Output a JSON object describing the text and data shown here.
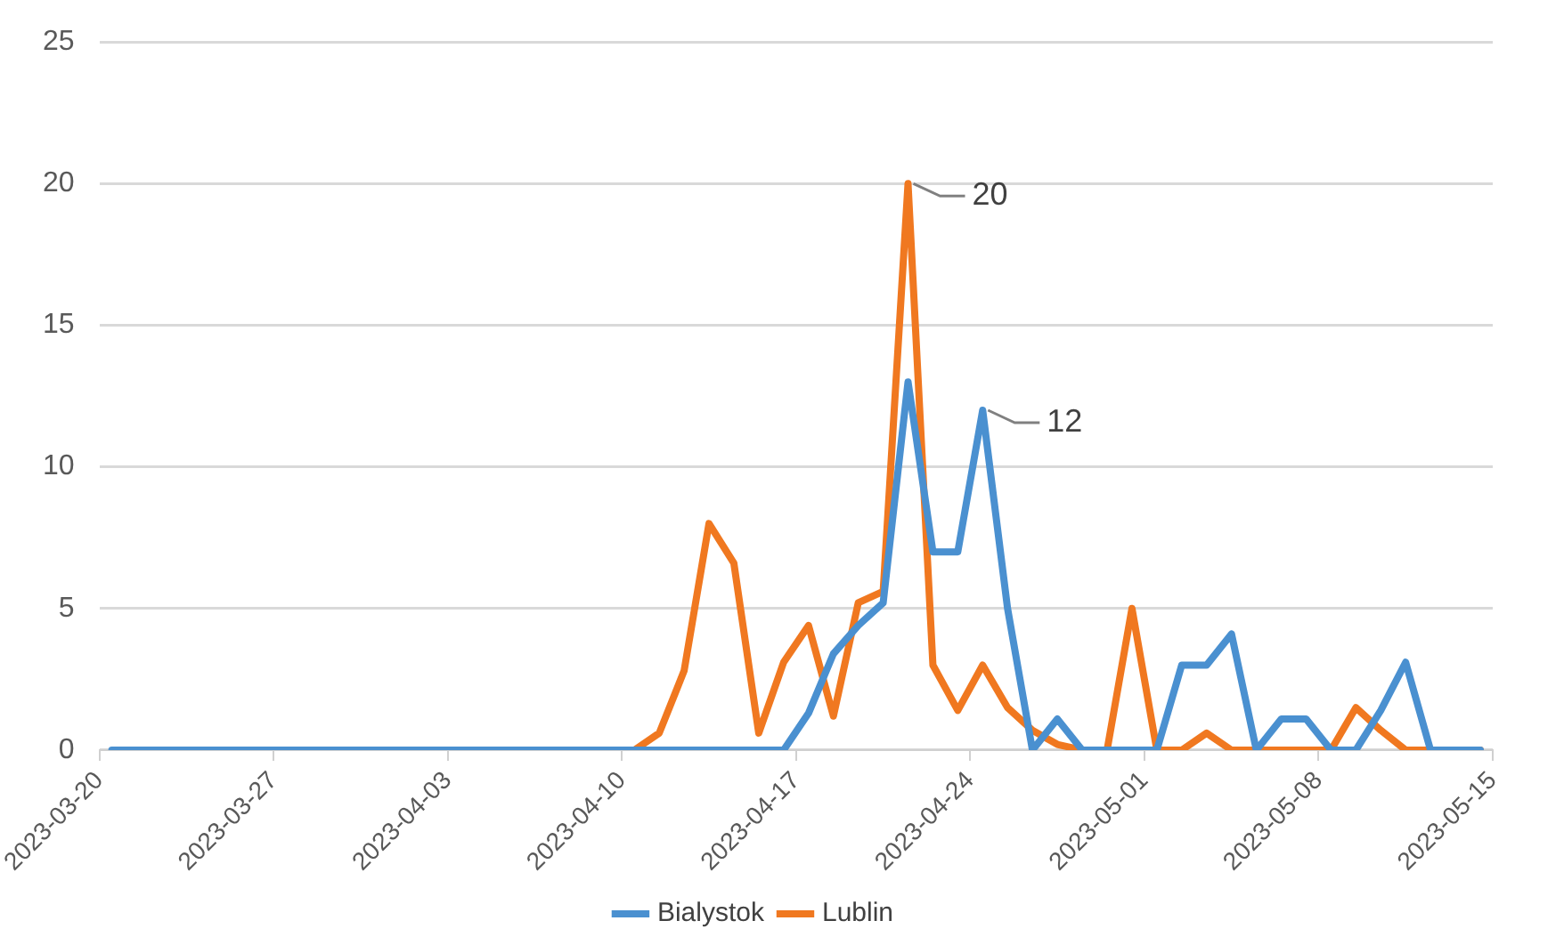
{
  "chart_data": {
    "type": "line",
    "x": [
      "2023-03-20T12:00",
      "2023-03-21T12:00",
      "2023-03-22T12:00",
      "2023-03-23T12:00",
      "2023-03-24T12:00",
      "2023-03-25T12:00",
      "2023-03-26T12:00",
      "2023-03-27T12:00",
      "2023-03-28T12:00",
      "2023-03-29T12:00",
      "2023-03-30T12:00",
      "2023-03-31T12:00",
      "2023-04-01T12:00",
      "2023-04-02T12:00",
      "2023-04-03T12:00",
      "2023-04-04T12:00",
      "2023-04-05T12:00",
      "2023-04-06T12:00",
      "2023-04-07T12:00",
      "2023-04-08T12:00",
      "2023-04-09T12:00",
      "2023-04-10T12:00",
      "2023-04-11T12:00",
      "2023-04-12T12:00",
      "2023-04-13T12:00",
      "2023-04-14T12:00",
      "2023-04-15T12:00",
      "2023-04-16T12:00",
      "2023-04-17T12:00",
      "2023-04-18T12:00",
      "2023-04-19T12:00",
      "2023-04-20T12:00",
      "2023-04-21T12:00",
      "2023-04-22T12:00",
      "2023-04-23T12:00",
      "2023-04-24T12:00",
      "2023-04-25T12:00",
      "2023-04-26T12:00",
      "2023-04-27T12:00",
      "2023-04-28T12:00",
      "2023-04-29T12:00",
      "2023-04-30T12:00",
      "2023-05-01T12:00",
      "2023-05-02T12:00",
      "2023-05-03T12:00",
      "2023-05-04T12:00",
      "2023-05-05T12:00",
      "2023-05-06T12:00",
      "2023-05-07T12:00",
      "2023-05-08T12:00",
      "2023-05-09T12:00",
      "2023-05-10T12:00",
      "2023-05-11T12:00",
      "2023-05-12T12:00",
      "2023-05-13T12:00",
      "2023-05-14T12:00"
    ],
    "series": [
      {
        "name": "Bialystok",
        "color": "#4a90d0",
        "values": [
          0,
          0,
          0,
          0,
          0,
          0,
          0,
          0,
          0,
          0,
          0,
          0,
          0,
          0,
          0,
          0,
          0,
          0,
          0,
          0,
          0,
          0,
          0,
          0,
          0,
          0,
          0,
          0,
          1.3,
          3.4,
          4.4,
          5.2,
          13,
          7,
          7,
          12,
          5,
          0,
          1.1,
          0,
          0,
          0,
          0,
          3,
          3,
          4.1,
          0,
          1.1,
          1.1,
          0,
          0,
          1.4,
          3.1,
          0,
          0,
          0
        ]
      },
      {
        "name": "Lublin",
        "color": "#f07820",
        "values": [
          null,
          null,
          null,
          null,
          null,
          null,
          null,
          null,
          null,
          null,
          null,
          null,
          null,
          null,
          null,
          null,
          null,
          null,
          null,
          null,
          0,
          0,
          0.6,
          2.8,
          8,
          6.6,
          0.6,
          3.1,
          4.4,
          1.2,
          5.2,
          5.6,
          20,
          3,
          1.4,
          3,
          1.5,
          0.7,
          0.2,
          0,
          0,
          5,
          0,
          0,
          0.6,
          0,
          0,
          0,
          0,
          0,
          1.5,
          0.7,
          0,
          0,
          0,
          0
        ]
      }
    ],
    "xlim": [
      "2023-03-20",
      "2023-05-15"
    ],
    "xticks": [
      "2023-03-20",
      "2023-03-27",
      "2023-04-03",
      "2023-04-10",
      "2023-04-17",
      "2023-04-24",
      "2023-05-01",
      "2023-05-08",
      "2023-05-15"
    ],
    "ylim": [
      0,
      25
    ],
    "yticks": [
      0,
      5,
      10,
      15,
      20,
      25
    ],
    "annotations": [
      {
        "text": "20",
        "x": "2023-04-21T12:00",
        "y": 20
      },
      {
        "text": "12",
        "x": "2023-04-24T12:00",
        "y": 12
      }
    ],
    "grid": "y",
    "legend": "bottom",
    "marker": "none",
    "line_style": "solid"
  }
}
